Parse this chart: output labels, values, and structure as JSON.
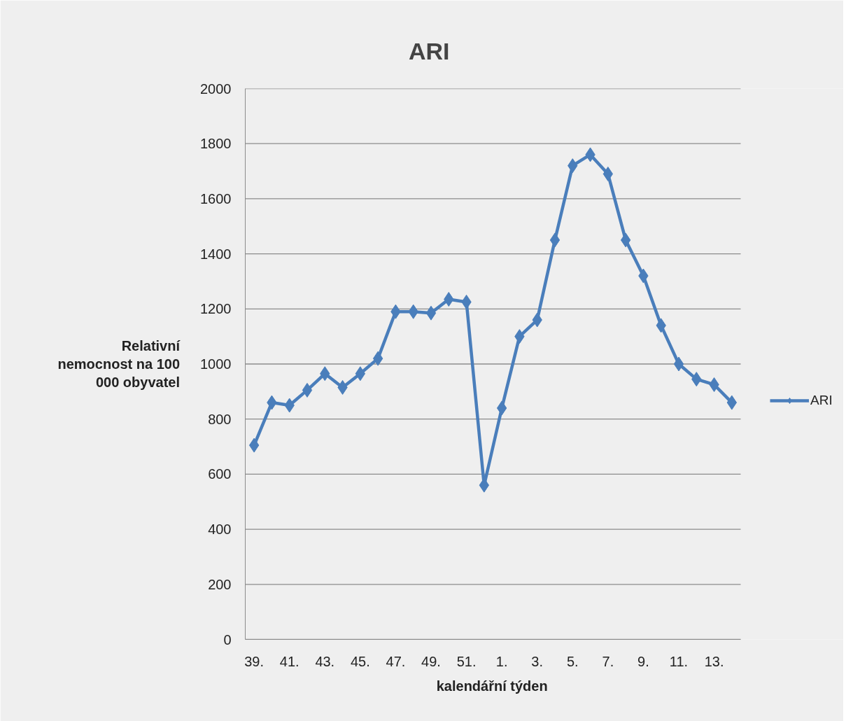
{
  "chart_data": {
    "type": "line",
    "title": "ARI",
    "xlabel": "kalendářní týden",
    "ylabel": "Relativní nemocnost na 100 000 obyvatel",
    "categories": [
      "39.",
      null,
      "41.",
      null,
      "43.",
      null,
      "45.",
      null,
      "47.",
      null,
      "49.",
      null,
      "51.",
      null,
      "1.",
      null,
      "3.",
      null,
      "5.",
      null,
      "7.",
      null,
      "9.",
      null,
      "11.",
      null,
      "13.",
      null
    ],
    "series": [
      {
        "name": "ARI",
        "color": "#4a7ebb",
        "values": [
          705,
          860,
          850,
          905,
          965,
          915,
          965,
          1020,
          1190,
          1190,
          1185,
          1235,
          1225,
          560,
          840,
          1100,
          1160,
          1450,
          1720,
          1760,
          1690,
          1450,
          1320,
          1140,
          1000,
          945,
          925,
          860
        ]
      }
    ],
    "ylim": [
      0,
      2000
    ],
    "yticks": [
      0,
      200,
      400,
      600,
      800,
      1000,
      1200,
      1400,
      1600,
      1800,
      2000
    ],
    "grid": "y",
    "legend": "right",
    "marker": "diamond",
    "line_style": "solid"
  }
}
